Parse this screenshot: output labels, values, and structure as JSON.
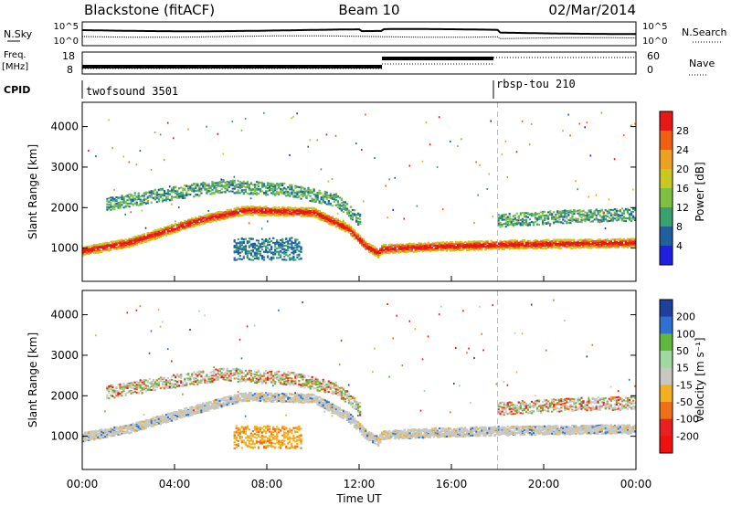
{
  "header": {
    "station": "Blackstone (fitACF)",
    "beam": "Beam 10",
    "date": "02/Mar/2014"
  },
  "aux": {
    "nsky_label": "N.Sky",
    "nsky_ticks": [
      "10^5",
      "10^0"
    ],
    "nsearch_label": "N.Search",
    "nsearch_ticks": [
      "10^5",
      "10^0"
    ],
    "freq_label_top": "Freq.",
    "freq_label_bottom": "[MHz]",
    "freq_ticks": [
      "18",
      "8"
    ],
    "nave_label": "Nave",
    "nave_ticks": [
      "60",
      "0"
    ],
    "cpid_label": "CPID",
    "cpid_segments": [
      "twofsound 3501",
      "rbsp-tou 210"
    ]
  },
  "chart_data": [
    {
      "type": "heatmap",
      "name": "power",
      "xlabel": "",
      "ylabel": "Slant Range [km]",
      "xlim": [
        0,
        24
      ],
      "ylim": [
        180,
        4600
      ],
      "yticks": [
        1000,
        2000,
        3000,
        4000
      ],
      "colorbar": {
        "label": "Power [dB]",
        "ticks": [
          "4",
          "8",
          "12",
          "16",
          "20",
          "24",
          "28"
        ],
        "colors": [
          "#2020e0",
          "#2060a0",
          "#3aa070",
          "#80c040",
          "#c8c820",
          "#f0a020",
          "#f06010",
          "#e81818"
        ]
      },
      "mode_change_hour": 18.0,
      "echo_bands": [
        {
          "kind": "ground",
          "points": [
            [
              0,
              950
            ],
            [
              2,
              1150
            ],
            [
              5,
              1700
            ],
            [
              7,
              1950
            ],
            [
              10,
              1900
            ],
            [
              11.5,
              1500
            ],
            [
              12.3,
              1050
            ],
            [
              12.8,
              900
            ],
            [
              13,
              1000
            ],
            [
              15,
              1050
            ],
            [
              18,
              1100
            ],
            [
              24,
              1150
            ]
          ]
        },
        {
          "kind": "upper",
          "points": [
            [
              1,
              2100
            ],
            [
              3,
              2300
            ],
            [
              6,
              2550
            ],
            [
              9,
              2450
            ],
            [
              11,
              2200
            ],
            [
              12,
              1700
            ]
          ]
        },
        {
          "kind": "late",
          "points": [
            [
              18,
              1700
            ],
            [
              21,
              1800
            ],
            [
              24,
              1850
            ]
          ]
        },
        {
          "kind": "blob",
          "center": [
            8,
            1000
          ],
          "size": [
            3,
            550
          ]
        }
      ]
    },
    {
      "type": "heatmap",
      "name": "velocity",
      "xlabel": "Time UT",
      "ylabel": "Slant Range [km]",
      "xlim": [
        0,
        24
      ],
      "ylim": [
        180,
        4600
      ],
      "yticks": [
        1000,
        2000,
        3000,
        4000
      ],
      "xticks": [
        "00:00",
        "04:00",
        "08:00",
        "12:00",
        "16:00",
        "20:00",
        "00:00"
      ],
      "colorbar": {
        "label": "Velocity [m s⁻¹]",
        "ticks": [
          "200",
          "100",
          "50",
          "15",
          "-15",
          "-50",
          "-100",
          "-200"
        ],
        "colors": [
          "#2040a0",
          "#3070d0",
          "#60b840",
          "#a0d8a0",
          "#c8c8c0",
          "#f0b020",
          "#f07018",
          "#e82020",
          "#f01010"
        ]
      },
      "echo_bands": [
        {
          "kind": "ground",
          "points": [
            [
              0,
              1000
            ],
            [
              2,
              1200
            ],
            [
              5,
              1700
            ],
            [
              7,
              2000
            ],
            [
              10,
              1950
            ],
            [
              11.5,
              1500
            ],
            [
              12.3,
              1050
            ],
            [
              12.8,
              900
            ],
            [
              13,
              1050
            ],
            [
              15,
              1100
            ],
            [
              18,
              1150
            ],
            [
              24,
              1200
            ]
          ]
        },
        {
          "kind": "upper",
          "points": [
            [
              1,
              2100
            ],
            [
              3,
              2300
            ],
            [
              6,
              2550
            ],
            [
              9,
              2450
            ],
            [
              11,
              2200
            ],
            [
              12,
              1700
            ]
          ]
        },
        {
          "kind": "late",
          "points": [
            [
              18,
              1700
            ],
            [
              21,
              1800
            ],
            [
              24,
              1850
            ]
          ]
        },
        {
          "kind": "blob",
          "center": [
            8,
            1000
          ],
          "size": [
            3,
            550
          ]
        }
      ]
    }
  ]
}
